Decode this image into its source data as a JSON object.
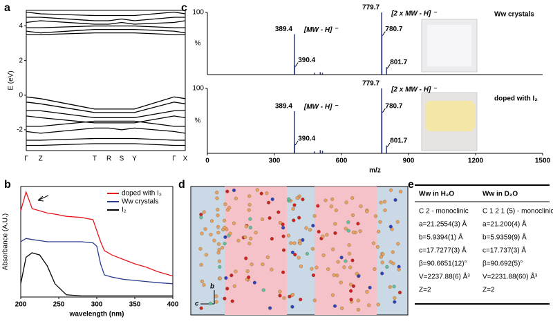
{
  "panel_labels": [
    "a",
    "b",
    "c",
    "d",
    "e"
  ],
  "chart_data": [
    {
      "type": "line",
      "y_label": "E (eV)",
      "categories": [
        "Γ",
        "Z",
        "T",
        "R",
        "S",
        "Y",
        "Γ",
        "X"
      ],
      "ylim": [
        -3.2,
        4.9
      ],
      "yticks": [
        -2,
        0,
        2,
        4
      ],
      "series": [
        {
          "color": "#000000",
          "values": [
            4.8,
            4.7,
            4.6,
            4.6,
            4.6,
            4.6,
            4.8,
            4.7
          ]
        },
        {
          "color": "#000000",
          "values": [
            4.5,
            4.5,
            4.3,
            4.3,
            4.4,
            4.3,
            4.5,
            4.5
          ]
        },
        {
          "color": "#000000",
          "values": [
            4.2,
            4.3,
            4.1,
            4.1,
            4.2,
            4.1,
            4.2,
            4.3
          ]
        },
        {
          "color": "#000000",
          "values": [
            3.9,
            3.9,
            4.0,
            4.0,
            4.0,
            4.0,
            3.9,
            3.9
          ]
        },
        {
          "color": "#000000",
          "values": [
            3.7,
            3.6,
            3.8,
            3.8,
            3.8,
            3.8,
            3.7,
            3.6
          ]
        },
        {
          "color": "#000000",
          "values": [
            3.5,
            3.5,
            3.6,
            3.6,
            3.6,
            3.6,
            3.5,
            3.5
          ]
        },
        {
          "color": "#000000",
          "values": [
            -0.1,
            -0.2,
            -0.8,
            -0.8,
            -0.8,
            -0.8,
            -0.1,
            -0.2
          ]
        },
        {
          "color": "#000000",
          "values": [
            -0.4,
            -0.5,
            -1.0,
            -1.0,
            -1.0,
            -1.0,
            -0.4,
            -0.5
          ]
        },
        {
          "color": "#000000",
          "values": [
            -0.9,
            -0.9,
            -1.3,
            -1.3,
            -1.3,
            -1.3,
            -0.9,
            -0.9
          ]
        },
        {
          "color": "#000000",
          "values": [
            -1.2,
            -1.3,
            -1.6,
            -1.6,
            -1.6,
            -1.6,
            -1.2,
            -1.3
          ]
        },
        {
          "color": "#000000",
          "values": [
            -1.8,
            -1.8,
            -1.5,
            -1.5,
            -1.5,
            -1.5,
            -1.8,
            -1.8
          ]
        },
        {
          "color": "#000000",
          "values": [
            -2.1,
            -2.2,
            -1.9,
            -1.9,
            -2.0,
            -1.9,
            -2.1,
            -2.2
          ]
        },
        {
          "color": "#000000",
          "values": [
            -2.6,
            -2.6,
            -2.5,
            -2.5,
            -2.5,
            -2.5,
            -2.6,
            -2.6
          ]
        },
        {
          "color": "#000000",
          "values": [
            -2.9,
            -2.9,
            -2.8,
            -2.8,
            -2.8,
            -2.8,
            -2.9,
            -2.9
          ]
        }
      ]
    },
    {
      "type": "line",
      "x_label": "wavelength (nm)",
      "y_label": "Absorbance (A.U.)",
      "x": [
        200,
        207,
        215,
        225,
        235,
        245,
        260,
        280,
        295,
        300,
        305,
        310,
        320,
        335,
        350,
        365,
        380,
        400
      ],
      "xlim": [
        200,
        400
      ],
      "xticks": [
        200,
        250,
        300,
        350,
        400
      ],
      "ylim": [
        0,
        1
      ],
      "series": [
        {
          "name": "doped with I₂",
          "color": "#e8141c",
          "values": [
            0.78,
            0.95,
            0.8,
            0.78,
            0.76,
            0.75,
            0.73,
            0.72,
            0.7,
            0.6,
            0.5,
            0.42,
            0.38,
            0.34,
            0.3,
            0.27,
            0.23,
            0.19
          ]
        },
        {
          "name": "Ww crystals",
          "color": "#2a3b8f",
          "values": [
            0.5,
            0.53,
            0.52,
            0.51,
            0.5,
            0.5,
            0.5,
            0.5,
            0.49,
            0.46,
            0.3,
            0.2,
            0.18,
            0.16,
            0.15,
            0.14,
            0.13,
            0.12
          ]
        },
        {
          "name": "I₂",
          "color": "#000000",
          "values": [
            0.12,
            0.36,
            0.4,
            0.38,
            0.28,
            0.12,
            0.02,
            0.01,
            0.01,
            0.01,
            0.01,
            0.01,
            0.01,
            0.01,
            0.01,
            0.01,
            0.01,
            0.01
          ]
        }
      ]
    },
    {
      "type": "stem",
      "y_label": "%",
      "sample": "Ww crystals",
      "xlim": [
        0,
        1500
      ],
      "ylim": [
        0,
        100
      ],
      "yticks": [
        100
      ],
      "annotations": [
        "[MW - H] ⁻",
        "[2 x MW - H] ⁻"
      ],
      "series": [
        {
          "color": "#2a3b8f",
          "x": [
            389.4,
            390.4,
            779.7,
            780.7,
            801.7
          ],
          "values": [
            65,
            15,
            100,
            65,
            12
          ]
        },
        {
          "color": "#2a3b8f",
          "x": [
            480,
            505,
            515
          ],
          "values": [
            3,
            4,
            3
          ]
        }
      ]
    },
    {
      "type": "stem",
      "y_label": "%",
      "sample": "doped with I₂",
      "x_label": "m/z",
      "xlim": [
        0,
        1500
      ],
      "xticks": [
        0,
        300,
        600,
        900,
        1200,
        1500
      ],
      "ylim": [
        0,
        100
      ],
      "yticks": [
        100
      ],
      "annotations": [
        "[MW - H] ⁻",
        "[2 x MW - H] ⁻"
      ],
      "series": [
        {
          "color": "#2a3b8f",
          "x": [
            389.4,
            390.4,
            779.7,
            780.7,
            801.7
          ],
          "values": [
            65,
            15,
            100,
            65,
            12
          ]
        },
        {
          "color": "#2a3b8f",
          "x": [
            480,
            505,
            515
          ],
          "values": [
            3,
            5,
            4
          ]
        }
      ]
    }
  ],
  "structure": {
    "axis_labels": [
      "b",
      "c"
    ]
  },
  "table": {
    "header": [
      "Ww in H₂O",
      "Ww in D₂O"
    ],
    "rows": [
      [
        "C 2 - monoclinic",
        "C 1 2 1 (5) - monoclinic"
      ],
      [
        "a=21.2554(3) Å",
        "a=21.200(4) Å"
      ],
      [
        "b=5.9394(1) Å",
        "b=5.9359(9) Å"
      ],
      [
        "c=17.7277(3) Å",
        "c=17.737(3) Å"
      ],
      [
        "β=90.6651(12)°",
        "β=90.692(5)°"
      ],
      [
        "V=2237.88(6) Å³",
        "V=2231.88(60) Å³"
      ],
      [
        "Z=2",
        "Z=2"
      ]
    ]
  }
}
